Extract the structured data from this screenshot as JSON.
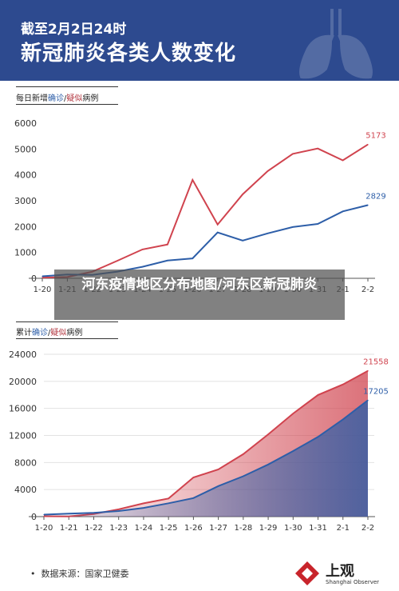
{
  "header": {
    "subtitle": "截至2月2日24时",
    "title": "新冠肺炎各类人数变化"
  },
  "panel1": {
    "label_prefix": "每日新增",
    "label_confirmed": "确诊",
    "label_sep": "/",
    "label_suspected": "疑似",
    "label_suffix": "病例"
  },
  "panel2": {
    "label_prefix": "累计",
    "label_confirmed": "确诊",
    "label_sep": "/",
    "label_suspected": "疑似",
    "label_suffix": "病例"
  },
  "overlay": {
    "text": "河东疫情地区分布地图/河东区新冠肺炎"
  },
  "footer": {
    "source": "数据来源：国家卫健委",
    "brand": "上观",
    "brand_en": "Shanghai Observer"
  },
  "colors": {
    "header_bg": "#2d4a8f",
    "suspected": "#d0434e",
    "confirmed": "#2d5ea8",
    "accent_text": "#b0303a"
  },
  "chart_data": [
    {
      "type": "line",
      "categories": [
        "1-20",
        "1-21",
        "1-22",
        "1-23",
        "1-24",
        "1-25",
        "1-26",
        "1-27",
        "1-28",
        "1-29",
        "1-30",
        "1-31",
        "2-1",
        "2-2"
      ],
      "ylim": [
        0,
        6000
      ],
      "yticks": [
        0,
        1000,
        2000,
        3000,
        4000,
        5000,
        6000
      ],
      "series": [
        {
          "name": "疑似",
          "color": "#d0434e",
          "values": [
            27,
            50,
            257,
            680,
            1118,
            1309,
            3806,
            2077,
            3248,
            4148,
            4812,
            5019,
            4562,
            5173
          ],
          "end_label": "5173"
        },
        {
          "name": "确诊",
          "color": "#2d5ea8",
          "values": [
            77,
            149,
            131,
            259,
            444,
            688,
            769,
            1771,
            1459,
            1737,
            1982,
            2102,
            2590,
            2829
          ],
          "end_label": "2829"
        }
      ],
      "grid": false,
      "xlabel": "",
      "ylabel": ""
    },
    {
      "type": "area",
      "categories": [
        "1-20",
        "1-21",
        "1-22",
        "1-23",
        "1-24",
        "1-25",
        "1-26",
        "1-27",
        "1-28",
        "1-29",
        "1-30",
        "1-31",
        "2-1",
        "2-2"
      ],
      "ylim": [
        0,
        24000
      ],
      "yticks": [
        0,
        4000,
        8000,
        12000,
        16000,
        20000,
        24000
      ],
      "series": [
        {
          "name": "疑似",
          "color": "#d0434e",
          "values": [
            54,
            37,
            393,
            1072,
            1965,
            2684,
            5794,
            6973,
            9239,
            12167,
            15238,
            17988,
            19544,
            21558
          ],
          "end_label": "21558"
        },
        {
          "name": "确诊",
          "color": "#2d5ea8",
          "values": [
            291,
            440,
            571,
            830,
            1287,
            1975,
            2744,
            4515,
            5974,
            7711,
            9692,
            11791,
            14380,
            17205
          ],
          "end_label": "17205"
        }
      ],
      "grid": true,
      "xlabel": "",
      "ylabel": ""
    }
  ]
}
